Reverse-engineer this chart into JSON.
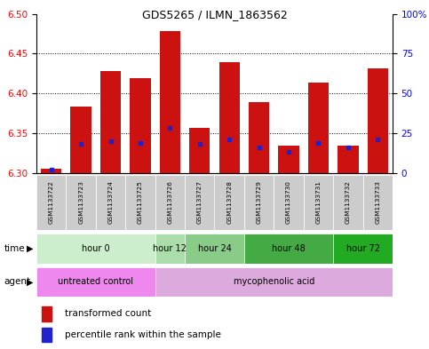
{
  "title": "GDS5265 / ILMN_1863562",
  "samples": [
    "GSM1133722",
    "GSM1133723",
    "GSM1133724",
    "GSM1133725",
    "GSM1133726",
    "GSM1133727",
    "GSM1133728",
    "GSM1133729",
    "GSM1133730",
    "GSM1133731",
    "GSM1133732",
    "GSM1133733"
  ],
  "transformed_count": [
    6.305,
    6.383,
    6.428,
    6.419,
    6.478,
    6.356,
    6.439,
    6.389,
    6.334,
    6.414,
    6.334,
    6.432
  ],
  "bar_bottom": 6.3,
  "percentile_rank": [
    2,
    18,
    20,
    19,
    28,
    18,
    21,
    16,
    13,
    19,
    16,
    21
  ],
  "ylim_left": [
    6.3,
    6.5
  ],
  "ylim_right": [
    0,
    100
  ],
  "yticks_left": [
    6.3,
    6.35,
    6.4,
    6.45,
    6.5
  ],
  "yticks_right": [
    0,
    25,
    50,
    75,
    100
  ],
  "ytick_labels_right": [
    "0",
    "25",
    "50",
    "75",
    "100%"
  ],
  "bar_color": "#cc1111",
  "percentile_color": "#2222cc",
  "time_groups": [
    {
      "label": "hour 0",
      "indices": [
        0,
        1,
        2,
        3
      ],
      "color": "#cceecc"
    },
    {
      "label": "hour 12",
      "indices": [
        4
      ],
      "color": "#aaddaa"
    },
    {
      "label": "hour 24",
      "indices": [
        5,
        6
      ],
      "color": "#88cc88"
    },
    {
      "label": "hour 48",
      "indices": [
        7,
        8,
        9
      ],
      "color": "#44aa44"
    },
    {
      "label": "hour 72",
      "indices": [
        10,
        11
      ],
      "color": "#22aa22"
    }
  ],
  "agent_groups": [
    {
      "label": "untreated control",
      "indices": [
        0,
        1,
        2,
        3
      ],
      "color": "#ee88ee"
    },
    {
      "label": "mycophenolic acid",
      "indices": [
        4,
        5,
        6,
        7,
        8,
        9,
        10,
        11
      ],
      "color": "#ddaadd"
    }
  ],
  "bar_width": 0.7,
  "legend_items": [
    {
      "label": "transformed count",
      "color": "#cc1111"
    },
    {
      "label": "percentile rank within the sample",
      "color": "#2222cc"
    }
  ]
}
